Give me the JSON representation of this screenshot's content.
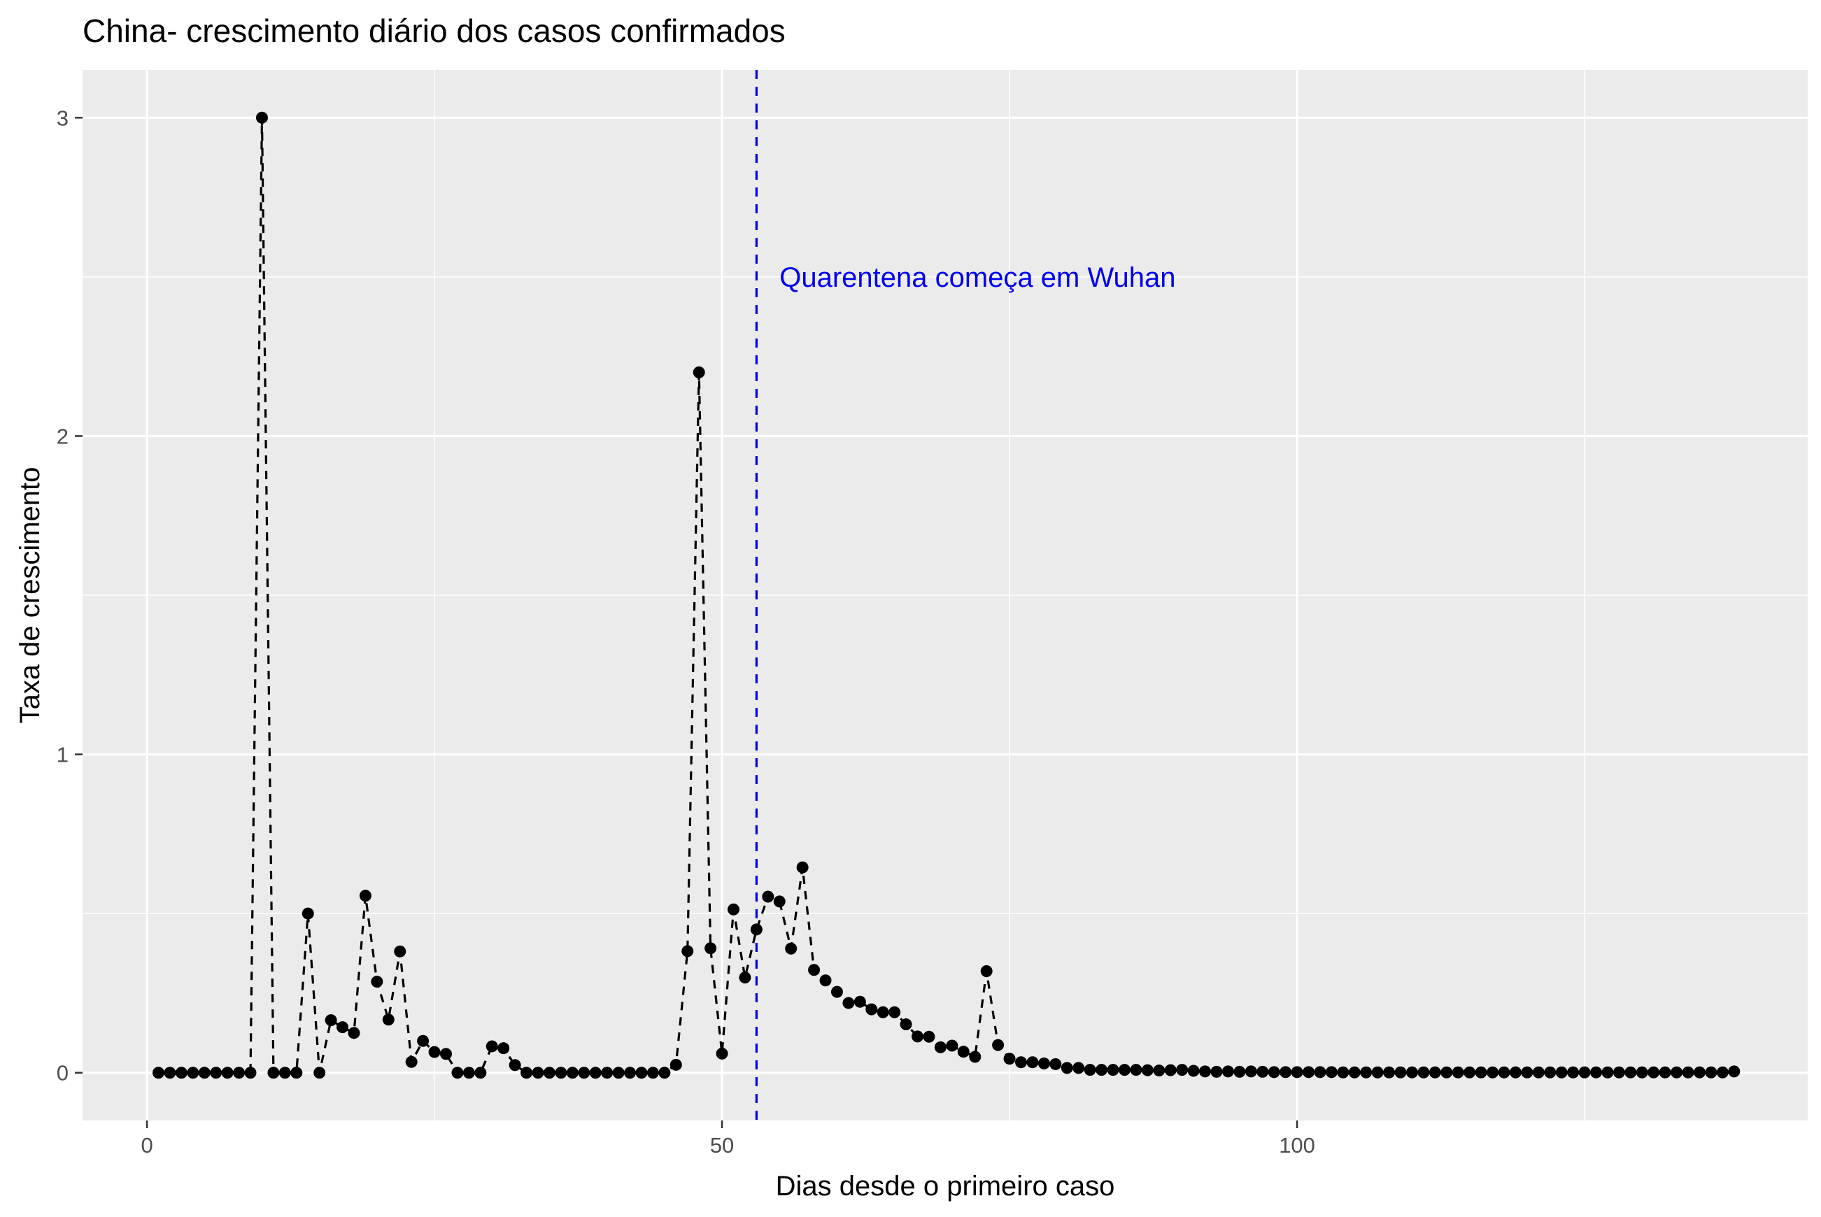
{
  "chart_data": {
    "type": "line",
    "title": "China- crescimento diário dos casos confirmados",
    "xlabel": "Dias desde o primeiro caso",
    "ylabel": "Taxa de crescimento",
    "xlim": [
      -5.6,
      144.4
    ],
    "ylim": [
      -0.15,
      3.15
    ],
    "xticks": [
      0,
      50,
      100
    ],
    "yticks": [
      0,
      1,
      2,
      3
    ],
    "grid": true,
    "legend": "none",
    "line_style": "dashed",
    "colors": {
      "panel": "#ebebeb",
      "grid": "#ffffff",
      "series": "#000000",
      "vline": "#0000ee",
      "annotation": "#0000ee",
      "tick_text": "#4d4d4d",
      "tick_mark": "#333333"
    },
    "vline": {
      "x": 53,
      "style": "dashed"
    },
    "annotation": {
      "text": "Quarentena começa em Wuhan",
      "x": 55,
      "y": 2.5
    },
    "series": [
      {
        "x": [
          1,
          2,
          3,
          4,
          5,
          6,
          7,
          8,
          9,
          10,
          11,
          12,
          13,
          14,
          15,
          16,
          17,
          18,
          19,
          20,
          21,
          22,
          23,
          24,
          25,
          26,
          27,
          28,
          29,
          30,
          31,
          32,
          33,
          34,
          35,
          36,
          37,
          38,
          39,
          40,
          41,
          42,
          43,
          44,
          45,
          46,
          47,
          48,
          49,
          50,
          51,
          52,
          53,
          54,
          55,
          56,
          57,
          58,
          59,
          60,
          61,
          62,
          63,
          64,
          65,
          66,
          67,
          68,
          69,
          70,
          71,
          72,
          73,
          74,
          75,
          76,
          77,
          78,
          79,
          80,
          81,
          82,
          83,
          84,
          85,
          86,
          87,
          88,
          89,
          90,
          91,
          92,
          93,
          94,
          95,
          96,
          97,
          98,
          99,
          100,
          101,
          102,
          103,
          104,
          105,
          106,
          107,
          108,
          109,
          110,
          111,
          112,
          113,
          114,
          115,
          116,
          117,
          118,
          119,
          120,
          121,
          122,
          123,
          124,
          125,
          126,
          127,
          128,
          129,
          130,
          131,
          132,
          133,
          134,
          135,
          136,
          137,
          138
        ],
        "values": [
          0,
          0,
          0,
          0,
          0,
          0,
          0,
          0,
          0,
          3.0,
          0,
          0,
          0,
          0.5,
          0,
          0.165,
          0.143,
          0.125,
          0.556,
          0.286,
          0.167,
          0.381,
          0.034,
          0.1,
          0.065,
          0.059,
          0,
          0,
          0,
          0.083,
          0.077,
          0.024,
          0,
          0,
          0,
          0,
          0,
          0,
          0,
          0,
          0,
          0,
          0,
          0,
          0,
          0.025,
          0.382,
          2.2,
          0.391,
          0.06,
          0.513,
          0.299,
          0.45,
          0.553,
          0.538,
          0.39,
          0.645,
          0.323,
          0.29,
          0.254,
          0.219,
          0.223,
          0.199,
          0.19,
          0.19,
          0.152,
          0.114,
          0.113,
          0.08,
          0.085,
          0.066,
          0.05,
          0.319,
          0.087,
          0.044,
          0.033,
          0.033,
          0.029,
          0.027,
          0.015,
          0.015,
          0.009,
          0.009,
          0.009,
          0.009,
          0.009,
          0.008,
          0.007,
          0.008,
          0.009,
          0.006,
          0.004,
          0.003,
          0.004,
          0.003,
          0.004,
          0.003,
          0.002,
          0.002,
          0.002,
          0.002,
          0.002,
          0.002,
          0.001,
          0.001,
          0.001,
          0.001,
          0.001,
          0.001,
          0.001,
          0.001,
          0.001,
          0.001,
          0.001,
          0.001,
          0.001,
          0.001,
          0.001,
          0.001,
          0.001,
          0.001,
          0.001,
          0.001,
          0.001,
          0.001,
          0.001,
          0.001,
          0.001,
          0.001,
          0.001,
          0.001,
          0.001,
          0.001,
          0.001,
          0.001,
          0.001,
          0.001,
          0.004
        ]
      }
    ]
  }
}
